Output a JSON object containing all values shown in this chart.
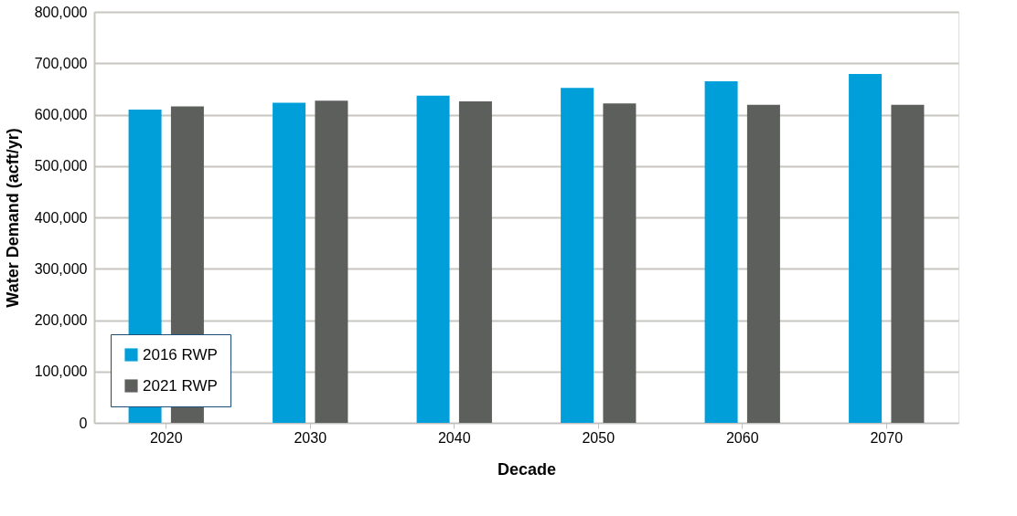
{
  "chart_data": {
    "type": "bar",
    "xlabel": "Decade",
    "ylabel": "Water Demand (acft/yr)",
    "categories": [
      "2020",
      "2030",
      "2040",
      "2050",
      "2060",
      "2070"
    ],
    "series": [
      {
        "name": "2016 RWP",
        "color": "#009fda",
        "values": [
          610000,
          623000,
          637000,
          652000,
          665000,
          679000
        ]
      },
      {
        "name": "2021 RWP",
        "color": "#5d5f5c",
        "values": [
          616000,
          627000,
          626000,
          622000,
          619000,
          619000
        ]
      }
    ],
    "ylim": [
      0,
      800000
    ],
    "yticks": [
      0,
      {
        "value": 100000,
        "label": "100,000"
      },
      {
        "value": 200000,
        "label": "200,000"
      },
      {
        "value": 300000,
        "label": "300,000"
      },
      {
        "value": 400000,
        "label": "400,000"
      },
      {
        "value": 500000,
        "label": "500,000"
      },
      {
        "value": 600000,
        "label": "600,000"
      },
      {
        "value": 700000,
        "label": "700,000"
      },
      {
        "value": 800000,
        "label": "800,000"
      }
    ],
    "grid": "y",
    "legend": "bottom left"
  }
}
